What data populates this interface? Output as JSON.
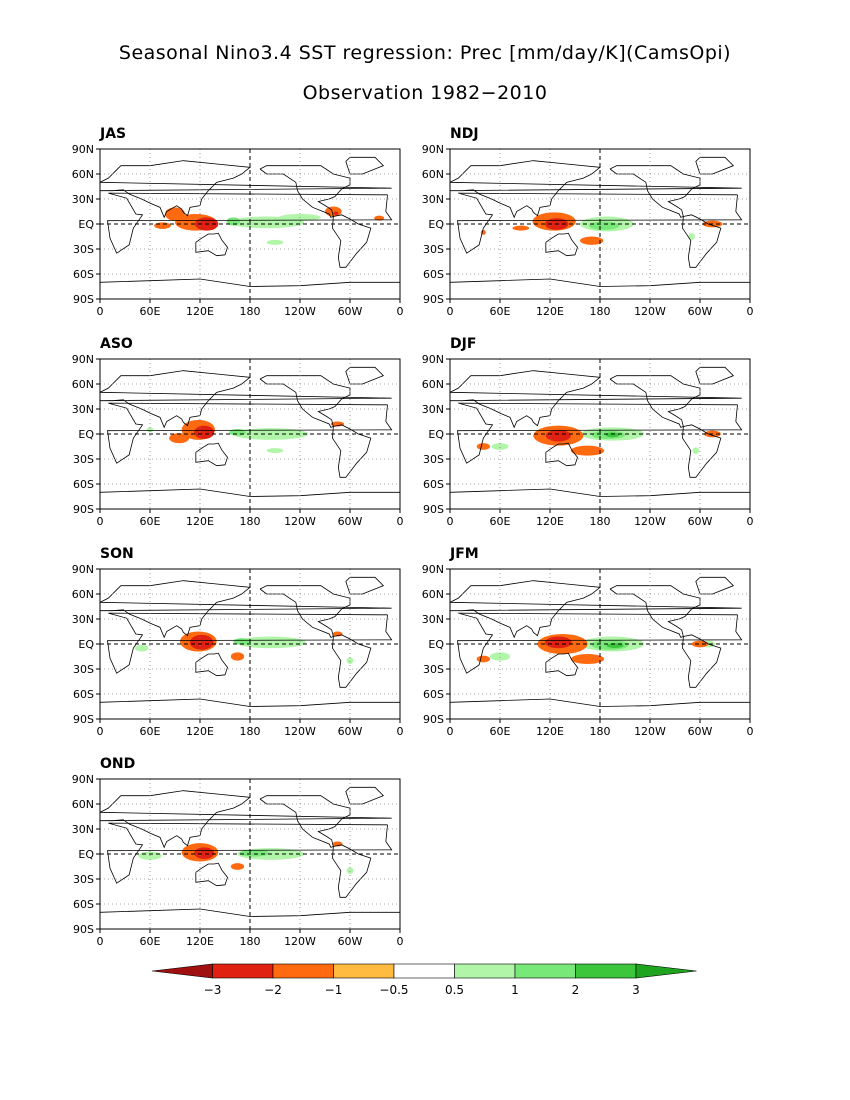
{
  "title": "Seasonal Nino3.4 SST regression: Prec [mm/day/K](CamsOpi)",
  "subtitle": "Observation 1982−2010",
  "chart_data": {
    "type": "heatmap",
    "title": "Seasonal Nino3.4 SST regression: Prec [mm/day/K](CamsOpi)",
    "subtitle": "Observation 1982−2010",
    "variable": "Precipitation regression onto Nino3.4 SST",
    "units": "mm/day/K",
    "lat_ticks": [
      "90N",
      "60N",
      "30N",
      "EQ",
      "30S",
      "60S",
      "90S"
    ],
    "lon_ticks": [
      "0",
      "60E",
      "120E",
      "180",
      "120W",
      "60W",
      "0"
    ],
    "lat_range": [
      -90,
      90
    ],
    "lon_range": [
      0,
      360
    ],
    "grid": "dotted",
    "colorbar": {
      "levels": [
        "−3",
        "−2",
        "−1",
        "−0.5",
        "0.5",
        "1",
        "2",
        "3"
      ],
      "colors": [
        "#a01010",
        "#e02010",
        "#ff6a10",
        "#ffbb40",
        "#ffffff",
        "#b0f5a8",
        "#78e878",
        "#3cc63c",
        "#1ea41e"
      ]
    },
    "panels": [
      {
        "label": "JAS",
        "blobs": [
          {
            "lon": 200,
            "lat": 2,
            "rx": 45,
            "ry": 7,
            "level": 1
          },
          {
            "lon": 160,
            "lat": 3,
            "rx": 8,
            "ry": 5,
            "level": 2
          },
          {
            "lon": 240,
            "lat": 8,
            "rx": 25,
            "ry": 4,
            "level": 1
          },
          {
            "lon": 210,
            "lat": -22,
            "rx": 10,
            "ry": 3,
            "level": 1
          },
          {
            "lon": 115,
            "lat": 2,
            "rx": 25,
            "ry": 10,
            "level": -1
          },
          {
            "lon": 128,
            "lat": 0,
            "rx": 14,
            "ry": 8,
            "level": -2
          },
          {
            "lon": 90,
            "lat": 12,
            "rx": 12,
            "ry": 8,
            "level": -1
          },
          {
            "lon": 75,
            "lat": -2,
            "rx": 10,
            "ry": 4,
            "level": -1
          },
          {
            "lon": 280,
            "lat": 15,
            "rx": 10,
            "ry": 6,
            "level": -1
          },
          {
            "lon": 283,
            "lat": 13,
            "rx": 3,
            "ry": 2,
            "level": -2
          },
          {
            "lon": 335,
            "lat": 7,
            "rx": 6,
            "ry": 3,
            "level": -1
          }
        ]
      },
      {
        "label": "NDJ",
        "blobs": [
          {
            "lon": 188,
            "lat": 0,
            "rx": 32,
            "ry": 9,
            "level": 1
          },
          {
            "lon": 185,
            "lat": -2,
            "rx": 18,
            "ry": 5,
            "level": 2
          },
          {
            "lon": 290,
            "lat": -15,
            "rx": 4,
            "ry": 4,
            "level": 1
          },
          {
            "lon": 125,
            "lat": 3,
            "rx": 26,
            "ry": 11,
            "level": -1
          },
          {
            "lon": 128,
            "lat": 0,
            "rx": 14,
            "ry": 7,
            "level": -2
          },
          {
            "lon": 170,
            "lat": -20,
            "rx": 14,
            "ry": 5,
            "level": -1
          },
          {
            "lon": 85,
            "lat": -5,
            "rx": 10,
            "ry": 3,
            "level": -1
          },
          {
            "lon": 315,
            "lat": 0,
            "rx": 12,
            "ry": 4,
            "level": -1
          },
          {
            "lon": 40,
            "lat": -10,
            "rx": 3,
            "ry": 3,
            "level": -1
          }
        ]
      },
      {
        "label": "ASO",
        "blobs": [
          {
            "lon": 205,
            "lat": 0,
            "rx": 45,
            "ry": 7,
            "level": 1
          },
          {
            "lon": 165,
            "lat": 2,
            "rx": 10,
            "ry": 4,
            "level": 2
          },
          {
            "lon": 210,
            "lat": -20,
            "rx": 10,
            "ry": 3,
            "level": 1
          },
          {
            "lon": 118,
            "lat": 5,
            "rx": 20,
            "ry": 12,
            "level": -1
          },
          {
            "lon": 125,
            "lat": 2,
            "rx": 12,
            "ry": 8,
            "level": -2
          },
          {
            "lon": 95,
            "lat": -5,
            "rx": 12,
            "ry": 6,
            "level": -1
          },
          {
            "lon": 285,
            "lat": 12,
            "rx": 8,
            "ry": 3,
            "level": -1
          },
          {
            "lon": 60,
            "lat": 5,
            "rx": 4,
            "ry": 3,
            "level": 1
          }
        ]
      },
      {
        "label": "DJF",
        "blobs": [
          {
            "lon": 195,
            "lat": 0,
            "rx": 38,
            "ry": 8,
            "level": 1
          },
          {
            "lon": 190,
            "lat": -1,
            "rx": 20,
            "ry": 5,
            "level": 2
          },
          {
            "lon": 195,
            "lat": -1,
            "rx": 8,
            "ry": 3,
            "level": 3
          },
          {
            "lon": 60,
            "lat": -15,
            "rx": 10,
            "ry": 4,
            "level": 1
          },
          {
            "lon": 295,
            "lat": -20,
            "rx": 4,
            "ry": 4,
            "level": 1
          },
          {
            "lon": 130,
            "lat": -2,
            "rx": 30,
            "ry": 12,
            "level": -1
          },
          {
            "lon": 130,
            "lat": -2,
            "rx": 15,
            "ry": 7,
            "level": -2
          },
          {
            "lon": 165,
            "lat": -20,
            "rx": 20,
            "ry": 6,
            "level": -1
          },
          {
            "lon": 40,
            "lat": -15,
            "rx": 8,
            "ry": 4,
            "level": -1
          },
          {
            "lon": 315,
            "lat": 0,
            "rx": 10,
            "ry": 4,
            "level": -1
          }
        ]
      },
      {
        "label": "SON",
        "blobs": [
          {
            "lon": 205,
            "lat": 2,
            "rx": 42,
            "ry": 7,
            "level": 1
          },
          {
            "lon": 170,
            "lat": 3,
            "rx": 10,
            "ry": 4,
            "level": 2
          },
          {
            "lon": 50,
            "lat": -5,
            "rx": 8,
            "ry": 4,
            "level": 1
          },
          {
            "lon": 300,
            "lat": -20,
            "rx": 4,
            "ry": 4,
            "level": 1
          },
          {
            "lon": 118,
            "lat": 3,
            "rx": 22,
            "ry": 12,
            "level": -1
          },
          {
            "lon": 122,
            "lat": 2,
            "rx": 14,
            "ry": 9,
            "level": -2
          },
          {
            "lon": 165,
            "lat": -15,
            "rx": 8,
            "ry": 5,
            "level": -1
          },
          {
            "lon": 285,
            "lat": 12,
            "rx": 6,
            "ry": 3,
            "level": -1
          }
        ]
      },
      {
        "label": "JFM",
        "blobs": [
          {
            "lon": 195,
            "lat": 0,
            "rx": 38,
            "ry": 9,
            "level": 1
          },
          {
            "lon": 192,
            "lat": -1,
            "rx": 22,
            "ry": 6,
            "level": 2
          },
          {
            "lon": 198,
            "lat": -2,
            "rx": 10,
            "ry": 3,
            "level": 3
          },
          {
            "lon": 60,
            "lat": -15,
            "rx": 12,
            "ry": 5,
            "level": 1
          },
          {
            "lon": 310,
            "lat": 0,
            "rx": 8,
            "ry": 4,
            "level": 1
          },
          {
            "lon": 135,
            "lat": 0,
            "rx": 30,
            "ry": 12,
            "level": -1
          },
          {
            "lon": 130,
            "lat": 2,
            "rx": 16,
            "ry": 7,
            "level": -2
          },
          {
            "lon": 165,
            "lat": -18,
            "rx": 20,
            "ry": 6,
            "level": -1
          },
          {
            "lon": 40,
            "lat": -18,
            "rx": 8,
            "ry": 4,
            "level": -1
          },
          {
            "lon": 300,
            "lat": 0,
            "rx": 10,
            "ry": 4,
            "level": -1
          }
        ]
      },
      {
        "label": "OND",
        "blobs": [
          {
            "lon": 205,
            "lat": 0,
            "rx": 40,
            "ry": 7,
            "level": 1
          },
          {
            "lon": 185,
            "lat": 1,
            "rx": 18,
            "ry": 4,
            "level": 2
          },
          {
            "lon": 60,
            "lat": -2,
            "rx": 14,
            "ry": 5,
            "level": 1
          },
          {
            "lon": 300,
            "lat": -20,
            "rx": 4,
            "ry": 4,
            "level": 1
          },
          {
            "lon": 120,
            "lat": 2,
            "rx": 22,
            "ry": 11,
            "level": -1
          },
          {
            "lon": 125,
            "lat": 1,
            "rx": 12,
            "ry": 7,
            "level": -2
          },
          {
            "lon": 165,
            "lat": -15,
            "rx": 8,
            "ry": 4,
            "level": -1
          },
          {
            "lon": 285,
            "lat": 12,
            "rx": 6,
            "ry": 3,
            "level": -1
          }
        ]
      }
    ]
  }
}
